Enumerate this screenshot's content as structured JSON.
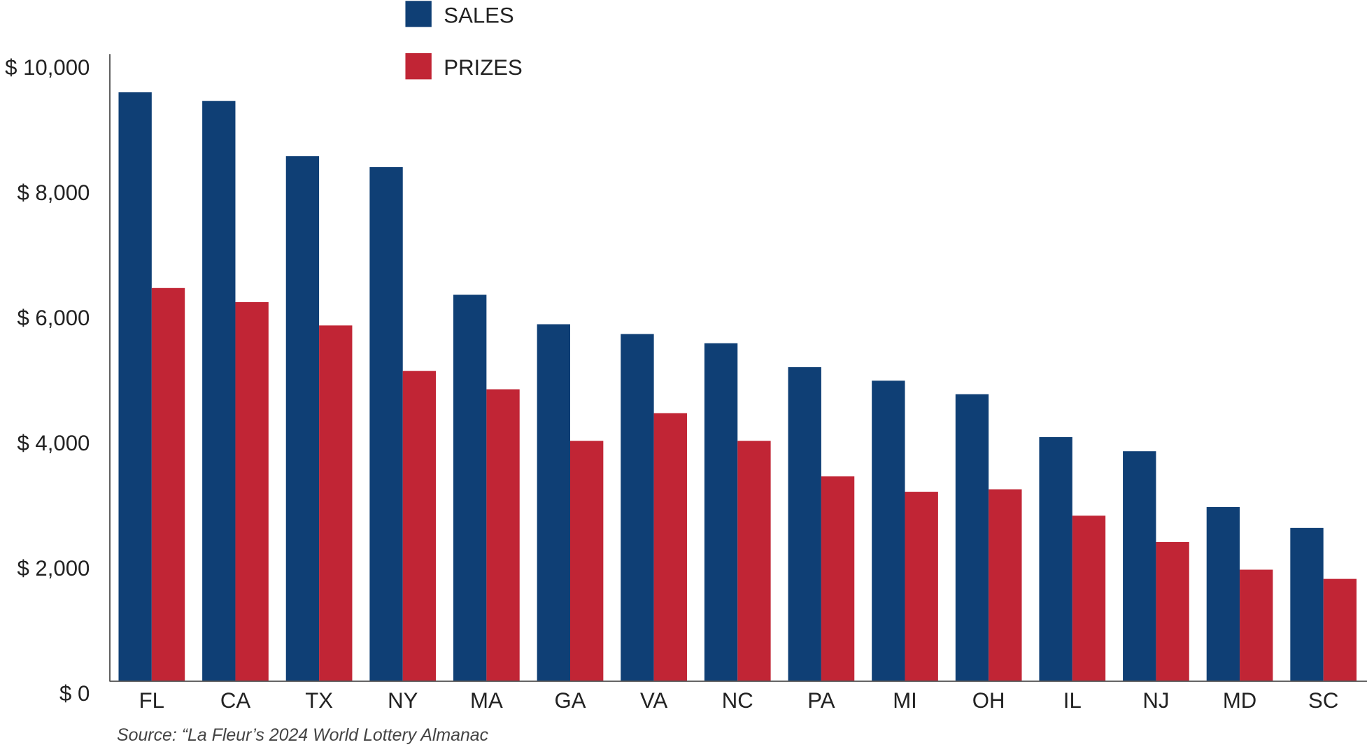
{
  "chart_data": {
    "type": "bar",
    "title": "",
    "xlabel": "",
    "ylabel": "",
    "ylim": [
      0,
      10000
    ],
    "yticks": [
      0,
      2000,
      4000,
      6000,
      8000,
      10000
    ],
    "ytick_labels": [
      "$ 0",
      "$ 2,000",
      "$ 4,000",
      "$ 6,000",
      "$ 8,000",
      "$ 10,000"
    ],
    "categories": [
      "FL",
      "CA",
      "TX",
      "NY",
      "MA",
      "GA",
      "VA",
      "NC",
      "PA",
      "MI",
      "OH",
      "IL",
      "NJ",
      "MD",
      "SC"
    ],
    "series": [
      {
        "name": "SALES",
        "color": "#0f3f75",
        "values": [
          9590,
          9450,
          8550,
          8370,
          6290,
          5810,
          5650,
          5500,
          5110,
          4890,
          4670,
          3970,
          3740,
          2830,
          2490
        ]
      },
      {
        "name": "PRIZES",
        "color": "#c12535",
        "values": [
          6400,
          6170,
          5790,
          5050,
          4750,
          3910,
          4360,
          3910,
          3330,
          3080,
          3120,
          2690,
          2260,
          1810,
          1660
        ]
      }
    ],
    "legend_position": "top-center",
    "grid": false,
    "source": "Source: “La Fleur’s 2024 World Lottery Almanac"
  }
}
